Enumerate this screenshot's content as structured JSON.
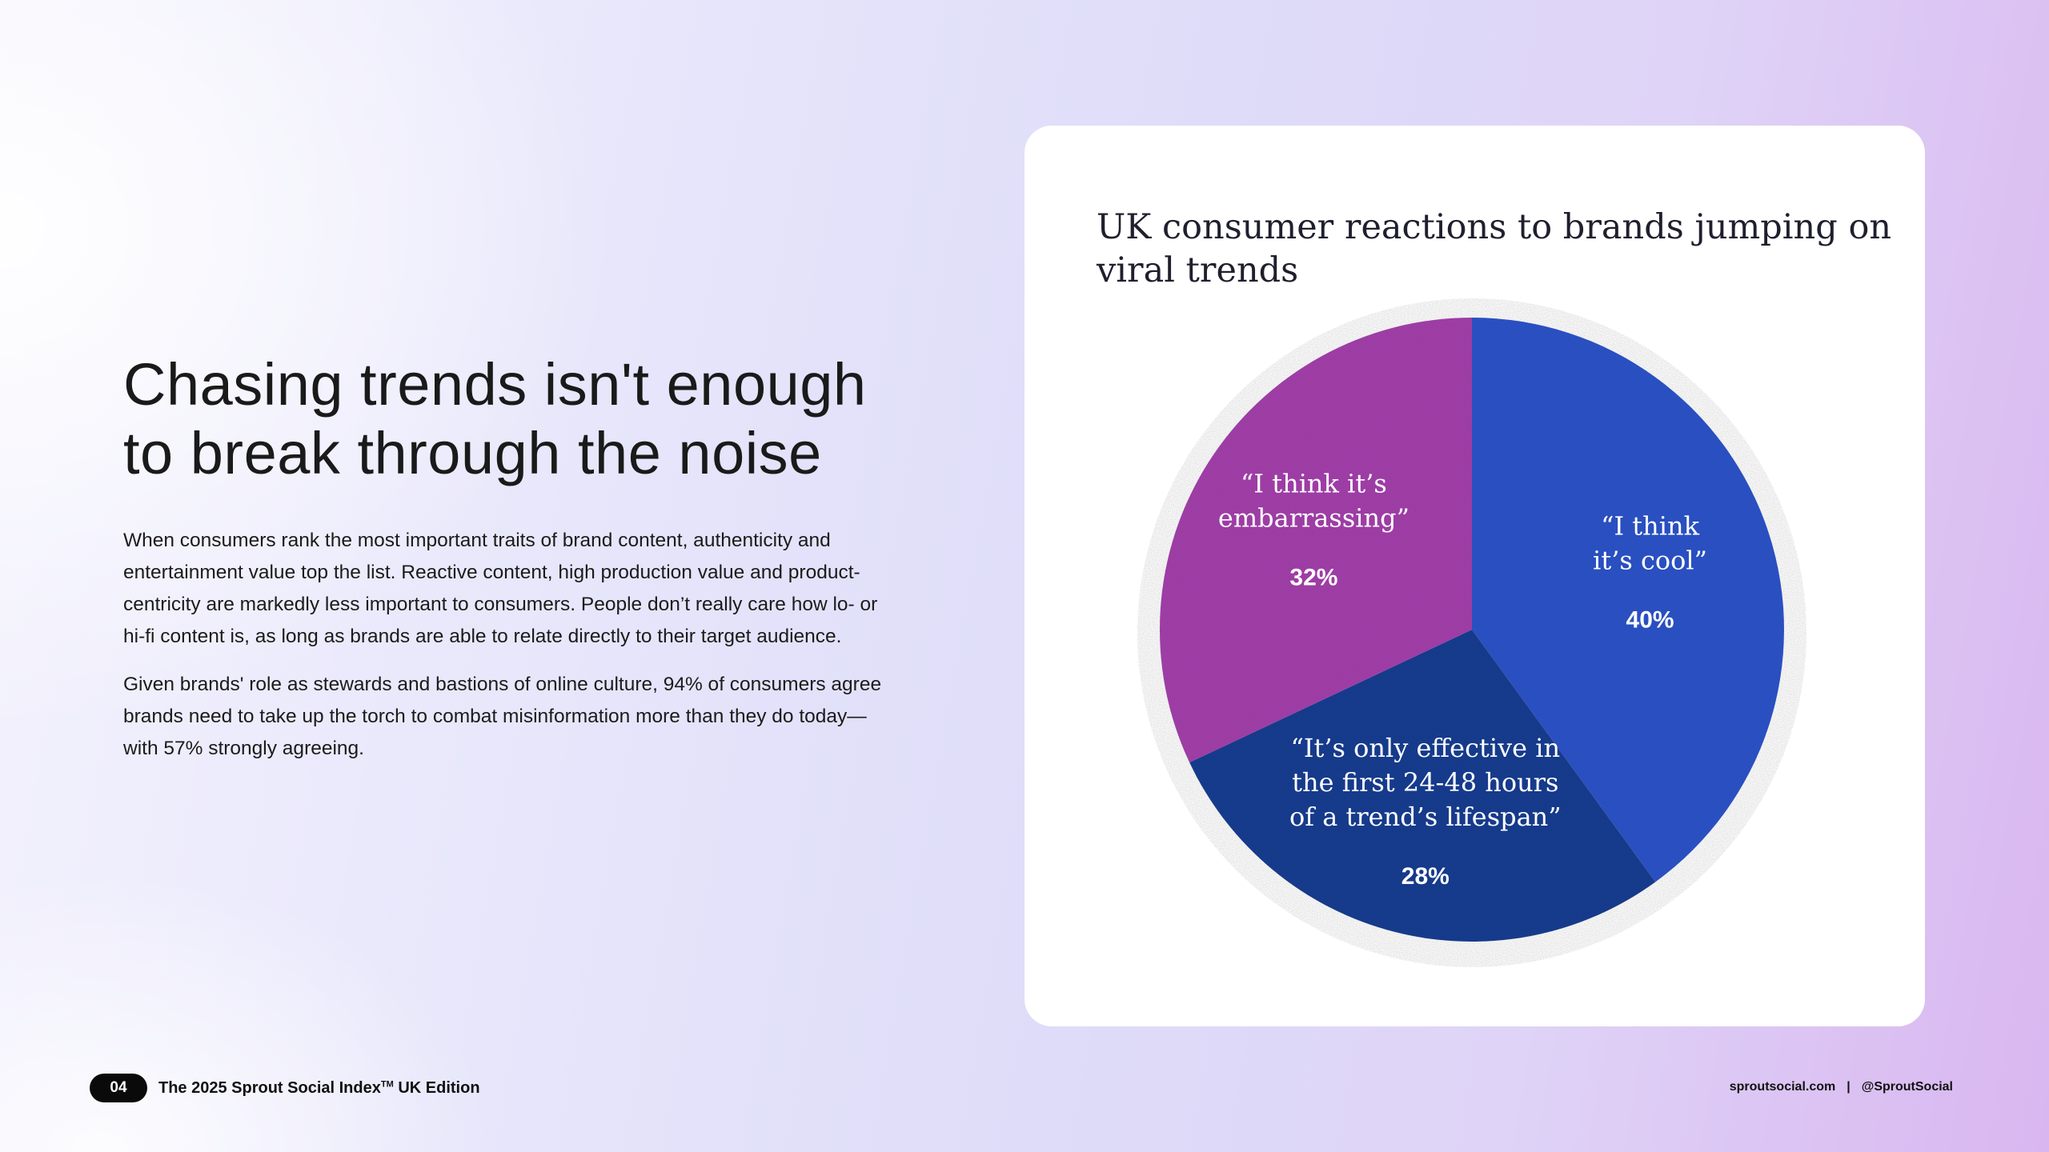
{
  "headline": {
    "line1": "Chasing trends isn't enough",
    "line2": "to break through the noise"
  },
  "body": {
    "paragraph1": "When consumers rank the most important traits of brand content, authenticity and entertainment value top the list. Reactive content, high production value and product-centricity are markedly less important to consumers. People don’t really care how lo- or hi-fi content is, as long as brands are able to relate directly to their target audience.",
    "paragraph2": "Given brands' role as stewards and bastions of online culture, 94% of consumers agree brands need to take up the torch to combat misinformation more than they do today—with 57% strongly agreeing."
  },
  "chart_data": {
    "type": "pie",
    "title": "UK consumer reactions to brands jumping on viral trends",
    "slices": [
      {
        "label_lines": [
          "“I think",
          "it’s cool”"
        ],
        "value": 40,
        "display": "40%",
        "color": "#2a51c4"
      },
      {
        "label_lines": [
          "“It’s only effective in",
          "the first 24-48 hours",
          "of a trend’s lifespan”"
        ],
        "value": 28,
        "display": "28%",
        "color": "#173b8e"
      },
      {
        "label_lines": [
          "“I think it’s",
          "embarrassing”"
        ],
        "value": 32,
        "display": "32%",
        "color": "#a03fa8"
      }
    ]
  },
  "footer": {
    "page_number": "04",
    "publication": "The 2025 Sprout Social Index",
    "trademark": "TM",
    "edition": " UK Edition",
    "website": "sproutsocial.com",
    "separator": "|",
    "handle": "@SproutSocial"
  }
}
